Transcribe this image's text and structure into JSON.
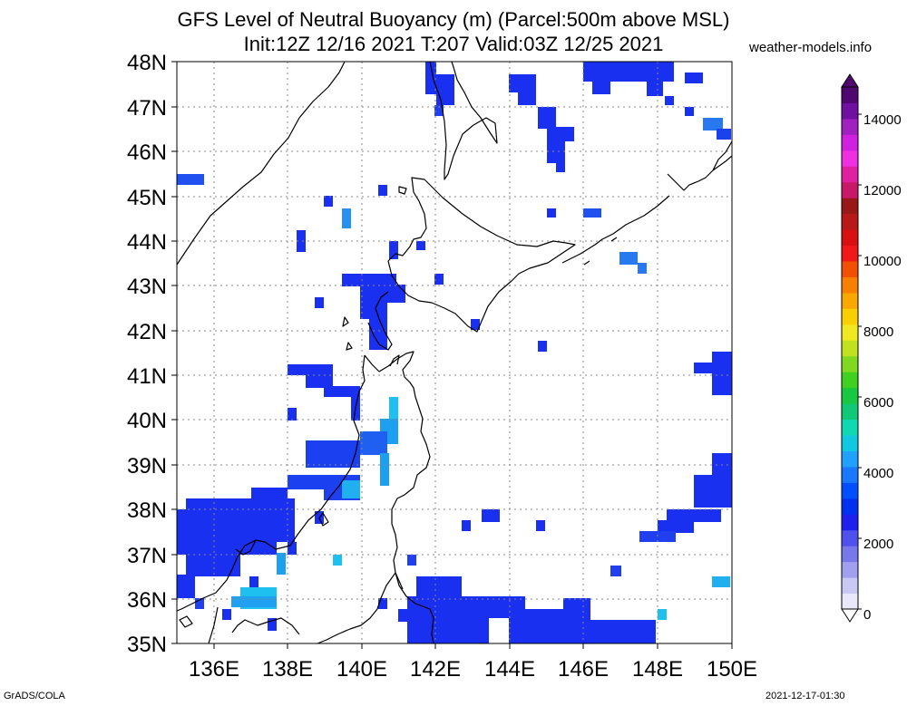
{
  "header": {
    "title_line1": "GFS Level of Neutral Buoyancy (m) (Parcel:500m above MSL)",
    "title_line2": "Init:12Z 12/16 2021 T:207 Valid:03Z 12/25 2021",
    "site": "weather-models.info"
  },
  "footer": {
    "left": "GrADS/COLA",
    "right": "2021-12-17-01:30"
  },
  "map": {
    "lat_labels": [
      "48N",
      "47N",
      "46N",
      "45N",
      "44N",
      "43N",
      "42N",
      "41N",
      "40N",
      "39N",
      "38N",
      "37N",
      "36N",
      "35N"
    ],
    "lon_labels": [
      "136E",
      "138E",
      "140E",
      "142E",
      "144E",
      "146E",
      "148E",
      "150E"
    ],
    "lon_range": [
      134.75,
      150
    ],
    "lat_range": [
      35,
      48
    ]
  },
  "colorbar": {
    "labels": [
      "0",
      "2000",
      "4000",
      "6000",
      "8000",
      "10000",
      "12000",
      "14000"
    ],
    "colors": [
      "#e8e8fa",
      "#c8c8f4",
      "#a0a0ee",
      "#7878ea",
      "#5050ee",
      "#2020ee",
      "#0030f0",
      "#0050ff",
      "#1878ff",
      "#20a0ff",
      "#10c8e0",
      "#10d8b0",
      "#10c878",
      "#18c840",
      "#40d020",
      "#80d820",
      "#c0e020",
      "#f0e820",
      "#f8d000",
      "#f8a800",
      "#f88000",
      "#f05000",
      "#f01818",
      "#d81010",
      "#b81818",
      "#981818",
      "#c81868",
      "#e020a0",
      "#f030e0",
      "#d020e0",
      "#a020c0",
      "#7010a0",
      "#500870"
    ]
  }
}
